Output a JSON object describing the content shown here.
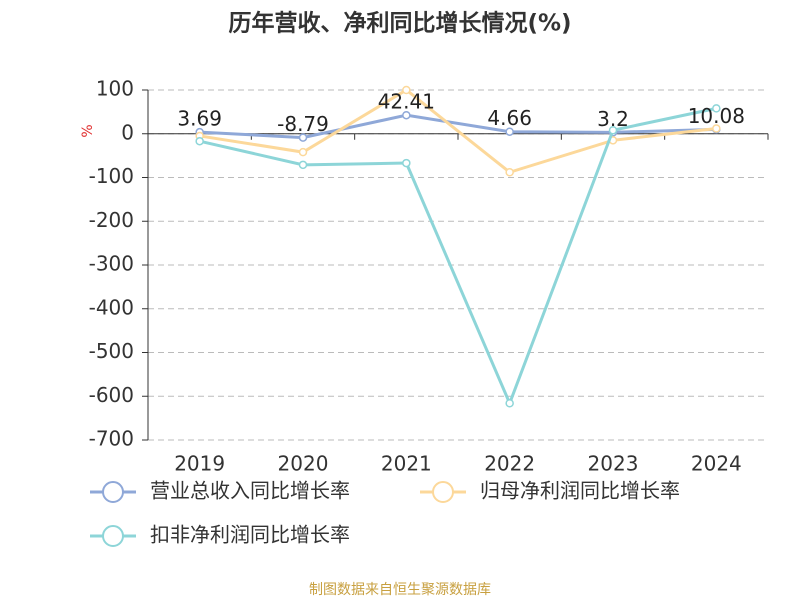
{
  "chart_data": {
    "type": "line",
    "title": "历年营收、净利同比增长情况(%)",
    "y_label": "%",
    "categories": [
      "2019",
      "2020",
      "2021",
      "2022",
      "2023",
      "2024"
    ],
    "series": [
      {
        "name": "营业总收入同比增长率",
        "color": "#8fa8d8",
        "values": [
          3.69,
          -8.79,
          42.41,
          4.66,
          3.2,
          10.08
        ],
        "show_labels": true
      },
      {
        "name": "归母净利润同比增长率",
        "color": "#fcd89a",
        "values": [
          -5,
          -42,
          100,
          -88,
          -15,
          12
        ],
        "show_labels": false
      },
      {
        "name": "扣非净利润同比增长率",
        "color": "#8dd5d8",
        "values": [
          -17,
          -71,
          -67,
          -616,
          8,
          58
        ],
        "show_labels": false
      }
    ],
    "ylim": [
      -700,
      100
    ],
    "yticks": [
      100,
      0,
      -100,
      -200,
      -300,
      -400,
      -500,
      -600,
      -700
    ],
    "grid": true,
    "footer": "制图数据来自恒生聚源数据库"
  }
}
